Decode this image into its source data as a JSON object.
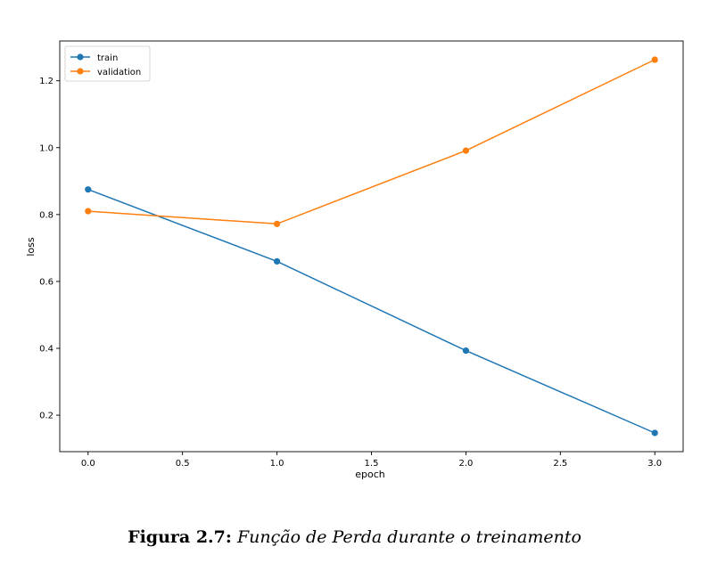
{
  "chart_data": {
    "type": "line",
    "x": [
      0,
      1,
      2,
      3
    ],
    "series": [
      {
        "name": "train",
        "values": [
          0.875,
          0.66,
          0.393,
          0.147
        ],
        "color": "#1f77b4"
      },
      {
        "name": "validation",
        "values": [
          0.81,
          0.772,
          0.991,
          1.263
        ],
        "color": "#ff7f0e"
      }
    ],
    "xlabel": "epoch",
    "ylabel": "loss",
    "xlim": [
      -0.15,
      3.15
    ],
    "ylim": [
      0.091,
      1.319
    ],
    "xticks": [
      0.0,
      0.5,
      1.0,
      1.5,
      2.0,
      2.5,
      3.0
    ],
    "xtick_labels": [
      "0.0",
      "0.5",
      "1.0",
      "1.5",
      "2.0",
      "2.5",
      "3.0"
    ],
    "yticks": [
      0.2,
      0.4,
      0.6,
      0.8,
      1.0,
      1.2
    ],
    "ytick_labels": [
      "0.2",
      "0.4",
      "0.6",
      "0.8",
      "1.0",
      "1.2"
    ],
    "grid": false,
    "legend_position": "top-left"
  },
  "caption": {
    "label": "Figura 2.7:",
    "text": "Função de Perda durante o treinamento"
  }
}
